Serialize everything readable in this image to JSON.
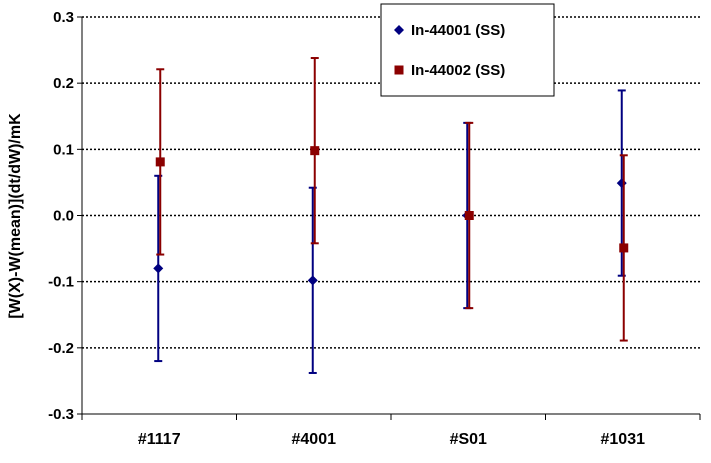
{
  "chart_data": {
    "type": "scatter",
    "title": "",
    "xlabel": "",
    "ylabel": "[W(X)-W(mean)](dt/dW)/mK",
    "categories": [
      "#1117",
      "#4001",
      "#S01",
      "#1031"
    ],
    "ylim": [
      -0.3,
      0.3
    ],
    "yticks": [
      "0.3",
      "0.2",
      "0.1",
      "0.0",
      "-0.1",
      "-0.2",
      "-0.3"
    ],
    "ytick_values": [
      0.3,
      0.2,
      0.1,
      0.0,
      -0.1,
      -0.2,
      -0.3
    ],
    "grid": "horizontal dotted",
    "legend_position": "top-right",
    "series": [
      {
        "name": "In-44001 (SS)",
        "marker": "diamond",
        "color": "#000080",
        "values": [
          -0.08,
          -0.098,
          0.0,
          0.049
        ],
        "errors": [
          0.14,
          0.14,
          0.14,
          0.14
        ]
      },
      {
        "name": "In-44002 (SS)",
        "marker": "square",
        "color": "#8B0000",
        "values": [
          0.081,
          0.098,
          0.0,
          -0.049
        ],
        "errors": [
          0.14,
          0.14,
          0.14,
          0.14
        ]
      }
    ]
  }
}
